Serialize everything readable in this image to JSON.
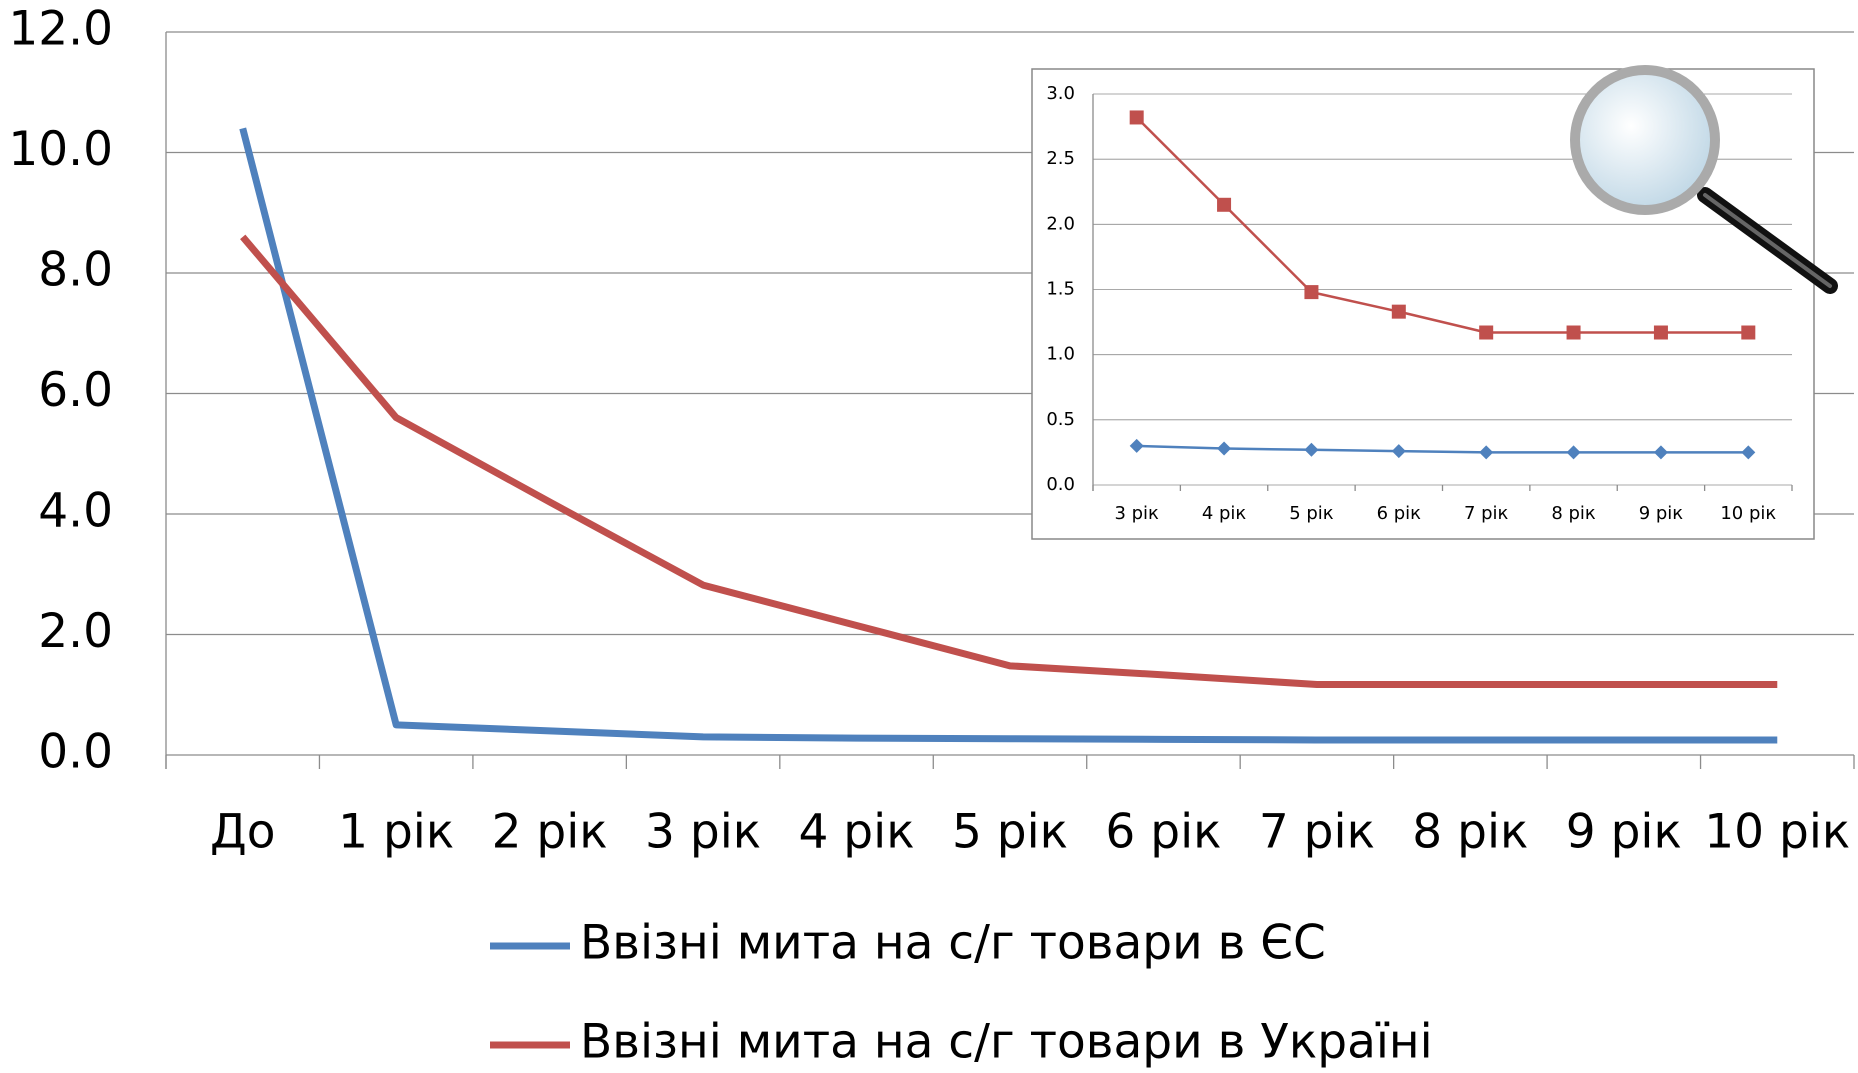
{
  "chart_data": [
    {
      "type": "line",
      "categories": [
        "До",
        "1 рік",
        "2 рік",
        "3 рік",
        "4 рік",
        "5 рік",
        "6 рік",
        "7 рік",
        "8 рік",
        "9 рік",
        "10 рік"
      ],
      "series": [
        {
          "name": "Ввізні мита на с/г товари в ЄС",
          "color": "#4f81bd",
          "values": [
            10.4,
            0.5,
            0.4,
            0.3,
            0.28,
            0.27,
            0.26,
            0.25,
            0.25,
            0.25,
            0.25
          ]
        },
        {
          "name": "Ввізні мита на с/г товари в Україні",
          "color": "#c0504d",
          "values": [
            8.6,
            5.6,
            4.2,
            2.82,
            2.15,
            1.48,
            1.33,
            1.17,
            1.17,
            1.17,
            1.17
          ]
        }
      ],
      "ylim": [
        0,
        12
      ],
      "yticks": [
        {
          "value": 0,
          "label": "0.0"
        },
        {
          "value": 2,
          "label": "2.0"
        },
        {
          "value": 4,
          "label": "4.0"
        },
        {
          "value": 6,
          "label": "6.0"
        },
        {
          "value": 8,
          "label": "8.0"
        },
        {
          "value": 10,
          "label": "10.0"
        },
        {
          "value": 12,
          "label": "12.0"
        }
      ],
      "grid": true,
      "legend": "bottom"
    },
    {
      "type": "line",
      "categories": [
        "3 рік",
        "4 рік",
        "5 рік",
        "6 рік",
        "7 рік",
        "8 рік",
        "9 рік",
        "10 рік"
      ],
      "series": [
        {
          "color": "#4f81bd",
          "marker": "diamond",
          "values": [
            0.3,
            0.28,
            0.27,
            0.26,
            0.25,
            0.25,
            0.25,
            0.25
          ]
        },
        {
          "color": "#c0504d",
          "marker": "square",
          "values": [
            2.82,
            2.15,
            1.48,
            1.33,
            1.17,
            1.17,
            1.17,
            1.17
          ]
        }
      ],
      "ylim": [
        0,
        3
      ],
      "yticks": [
        {
          "value": 0,
          "label": "0.0"
        },
        {
          "value": 0.5,
          "label": "0.5"
        },
        {
          "value": 1,
          "label": "1.0"
        },
        {
          "value": 1.5,
          "label": "1.5"
        },
        {
          "value": 2,
          "label": "2.0"
        },
        {
          "value": 2.5,
          "label": "2.5"
        },
        {
          "value": 3,
          "label": "3.0"
        }
      ],
      "grid": true
    }
  ]
}
